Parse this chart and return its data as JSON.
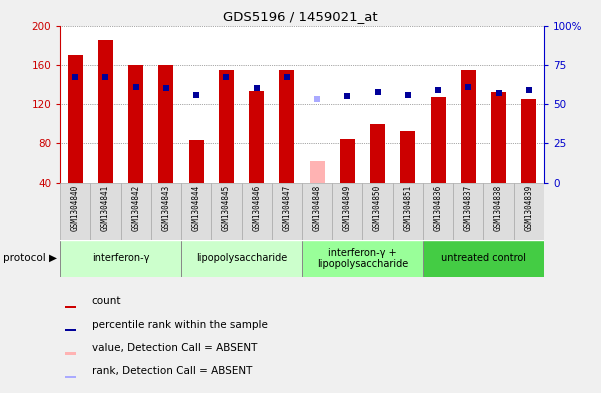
{
  "title": "GDS5196 / 1459021_at",
  "samples": [
    "GSM1304840",
    "GSM1304841",
    "GSM1304842",
    "GSM1304843",
    "GSM1304844",
    "GSM1304845",
    "GSM1304846",
    "GSM1304847",
    "GSM1304848",
    "GSM1304849",
    "GSM1304850",
    "GSM1304851",
    "GSM1304836",
    "GSM1304837",
    "GSM1304838",
    "GSM1304839"
  ],
  "bar_values": [
    170,
    185,
    160,
    160,
    83,
    155,
    133,
    155,
    62,
    85,
    100,
    93,
    127,
    155,
    132,
    125
  ],
  "bar_colors": [
    "#cc0000",
    "#cc0000",
    "#cc0000",
    "#cc0000",
    "#cc0000",
    "#cc0000",
    "#cc0000",
    "#cc0000",
    "#ffb3b3",
    "#cc0000",
    "#cc0000",
    "#cc0000",
    "#cc0000",
    "#cc0000",
    "#cc0000",
    "#cc0000"
  ],
  "rank_values": [
    67,
    67,
    61,
    60,
    56,
    67,
    60,
    67,
    53,
    55,
    58,
    56,
    59,
    61,
    57,
    59
  ],
  "rank_colors": [
    "#000099",
    "#000099",
    "#000099",
    "#000099",
    "#000099",
    "#000099",
    "#000099",
    "#000099",
    "#aaaaff",
    "#000099",
    "#000099",
    "#000099",
    "#000099",
    "#000099",
    "#000099",
    "#000099"
  ],
  "groups": [
    {
      "label": "interferon-γ",
      "start": 0,
      "end": 3,
      "color": "#ccffcc"
    },
    {
      "label": "lipopolysaccharide",
      "start": 4,
      "end": 7,
      "color": "#ccffcc"
    },
    {
      "label": "interferon-γ +\nlipopolysaccharide",
      "start": 8,
      "end": 11,
      "color": "#99ff99"
    },
    {
      "label": "untreated control",
      "start": 12,
      "end": 15,
      "color": "#44cc44"
    }
  ],
  "ylim_left": [
    40,
    200
  ],
  "ylim_right": [
    0,
    100
  ],
  "yticks_left": [
    40,
    80,
    120,
    160,
    200
  ],
  "yticks_right": [
    0,
    25,
    50,
    75,
    100
  ],
  "ytick_labels_right": [
    "0",
    "25",
    "50",
    "75",
    "100%"
  ],
  "ylabel_left_color": "#cc0000",
  "ylabel_right_color": "#0000cc",
  "plot_bg_color": "#ffffff",
  "fig_bg_color": "#f0f0f0",
  "grid_color": "#555555",
  "legend_items": [
    {
      "color": "#cc0000",
      "label": "count"
    },
    {
      "color": "#000099",
      "label": "percentile rank within the sample"
    },
    {
      "color": "#ffb3b3",
      "label": "value, Detection Call = ABSENT"
    },
    {
      "color": "#aaaaff",
      "label": "rank, Detection Call = ABSENT"
    }
  ]
}
